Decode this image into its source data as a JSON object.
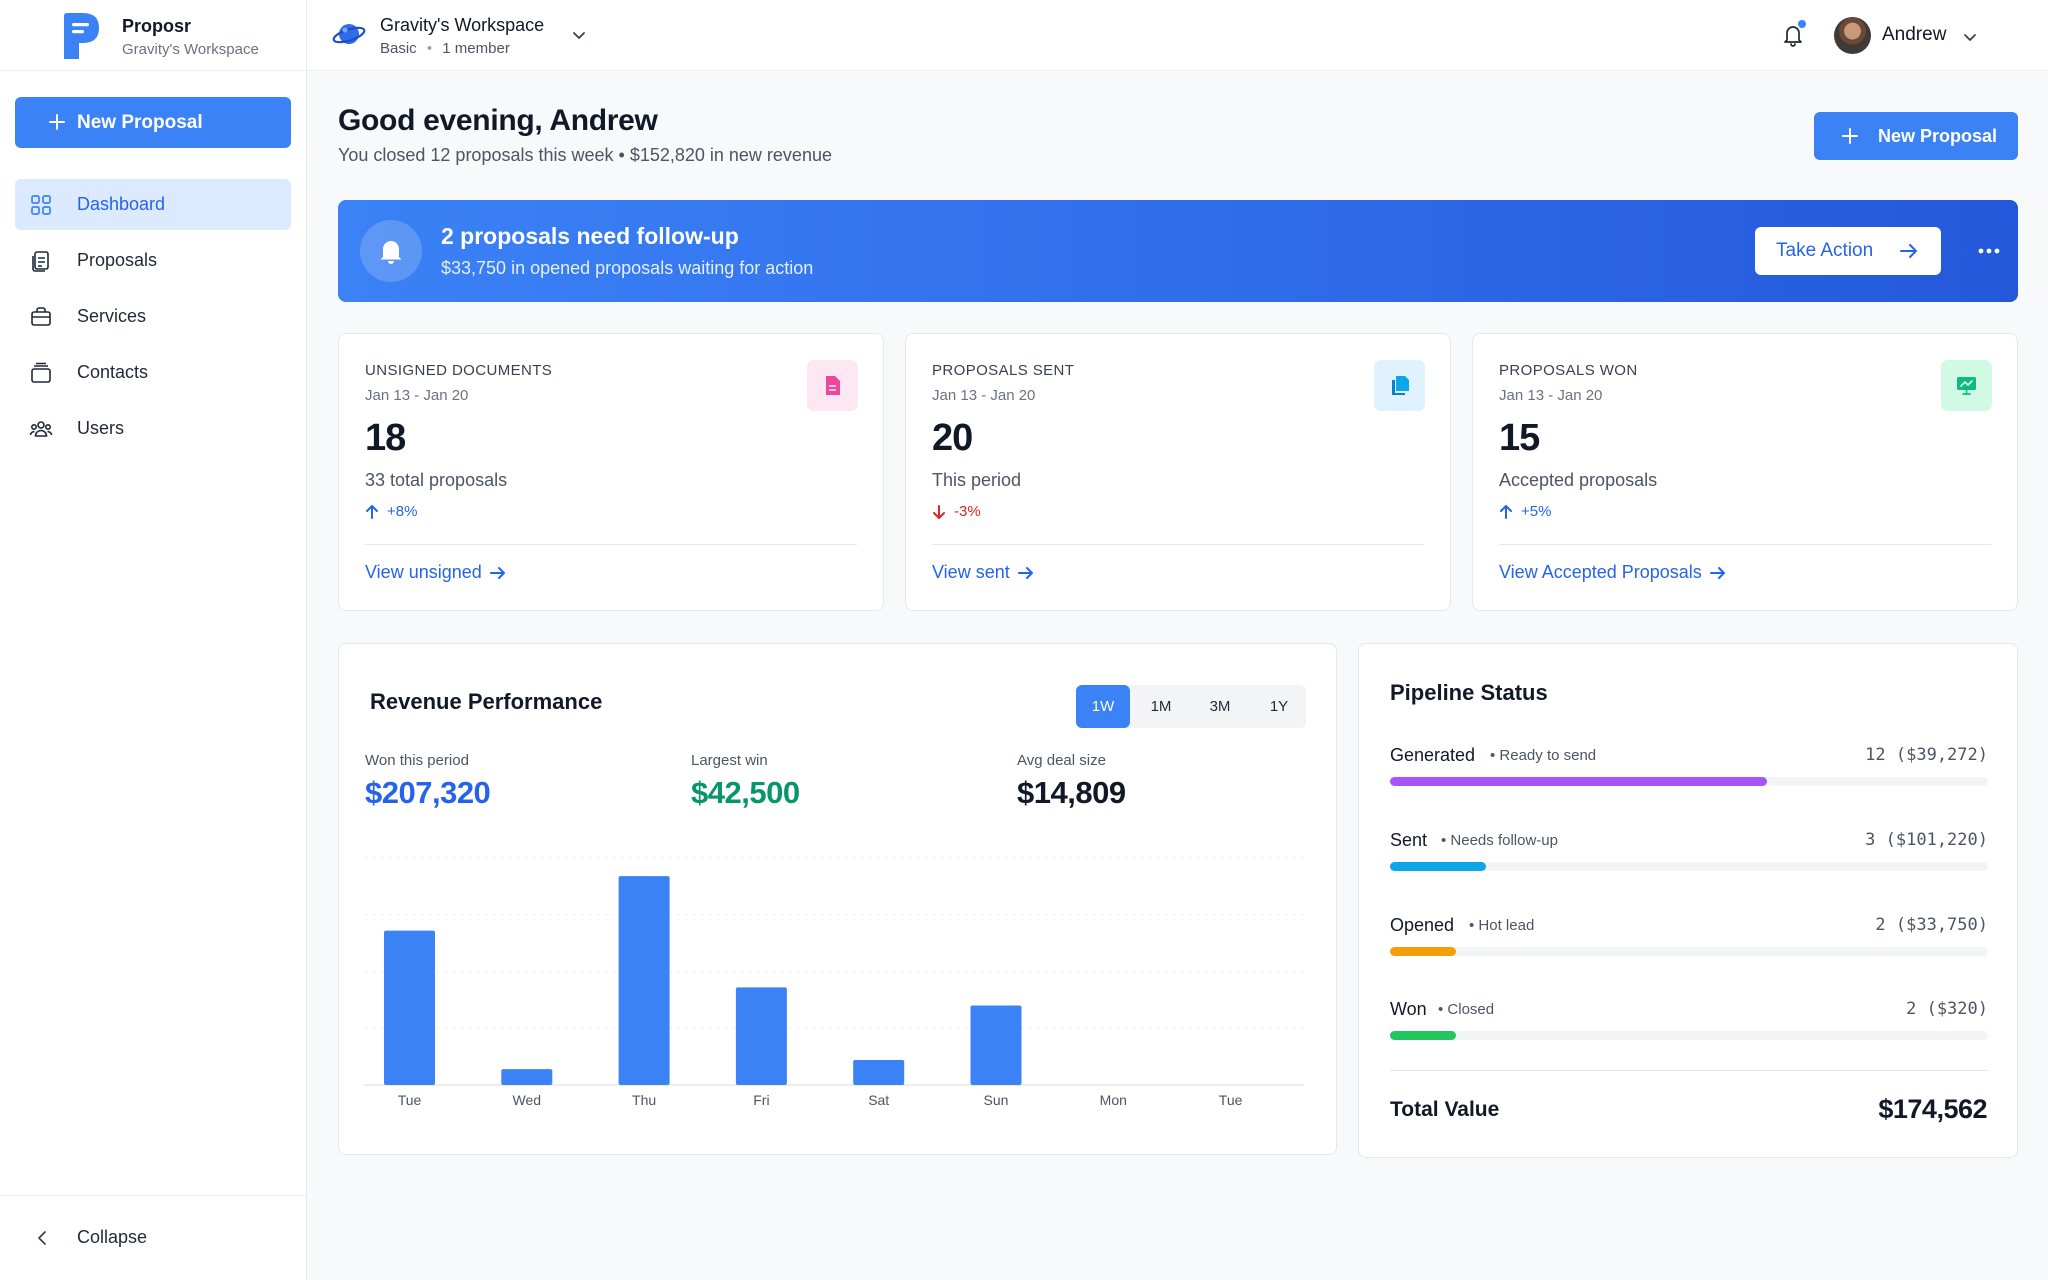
{
  "app": {
    "name": "Proposr",
    "workspace_label": "Gravity's Workspace"
  },
  "sidebar": {
    "new_proposal": "New Proposal",
    "items": [
      {
        "label": "Dashboard",
        "icon": "dashboard-grid-icon",
        "active": true
      },
      {
        "label": "Proposals",
        "icon": "clipboard-icon",
        "active": false
      },
      {
        "label": "Services",
        "icon": "briefcase-icon",
        "active": false
      },
      {
        "label": "Contacts",
        "icon": "contacts-icon",
        "active": false
      },
      {
        "label": "Users",
        "icon": "users-icon",
        "active": false
      }
    ],
    "collapse": "Collapse"
  },
  "header": {
    "workspace_name": "Gravity's Workspace",
    "workspace_plan": "Basic",
    "workspace_members": "1 member",
    "user_name": "Andrew",
    "accent": "#3b82f6"
  },
  "main": {
    "greeting": "Good evening, Andrew",
    "summary": "You closed 12 proposals this week • $152,820 in new revenue",
    "new_proposal": "New Proposal"
  },
  "banner": {
    "title": "2 proposals need follow-up",
    "subtitle": "$33,750 in opened proposals waiting for action",
    "action": "Take Action"
  },
  "stats": [
    {
      "label": "Unsigned Documents",
      "range": "Jan 13 - Jan 20",
      "value": "18",
      "desc": "33 total proposals",
      "change": "+8%",
      "direction": "up",
      "link": "View unsigned",
      "icon": "document-icon",
      "badge_bg": "#fce7f3",
      "badge_fg": "#ec4899"
    },
    {
      "label": "Proposals Sent",
      "range": "Jan 13 - Jan 20",
      "value": "20",
      "desc": "This period",
      "change": "-3%",
      "direction": "down",
      "link": "View sent",
      "icon": "copy-documents-icon",
      "badge_bg": "#e0f2fe",
      "badge_fg": "#0ea5e9"
    },
    {
      "label": "Proposals Won",
      "range": "Jan 13 - Jan 20",
      "value": "15",
      "desc": "Accepted proposals",
      "change": "+5%",
      "direction": "up",
      "link": "View Accepted Proposals",
      "icon": "presentation-chart-icon",
      "badge_bg": "#d1fae5",
      "badge_fg": "#10b981"
    }
  ],
  "revenue": {
    "title": "Revenue Performance",
    "periods": [
      "1W",
      "1M",
      "3M",
      "1Y"
    ],
    "active_period": "1W",
    "metrics": [
      {
        "label": "Won this period",
        "value": "$207,320",
        "color": "#2563eb"
      },
      {
        "label": "Largest win",
        "value": "$42,500",
        "color": "#059669"
      },
      {
        "label": "Avg deal size",
        "value": "$14,809",
        "color": "#111827"
      }
    ]
  },
  "chart_data": {
    "type": "bar",
    "categories": [
      "Tue",
      "Wed",
      "Thu",
      "Fri",
      "Sat",
      "Sun",
      "Mon",
      "Tue"
    ],
    "values": [
      68,
      7,
      92,
      43,
      11,
      35,
      0,
      0
    ],
    "ylim": [
      0,
      100
    ],
    "grid": true,
    "bar_color": "#3b82f6",
    "title": "",
    "xlabel": "",
    "ylabel": ""
  },
  "pipeline": {
    "title": "Pipeline Status",
    "rows": [
      {
        "name": "Generated",
        "note": "• Ready to send",
        "count": "12 ($39,272)",
        "fraction": 0.63,
        "color": "#a855f7"
      },
      {
        "name": "Sent",
        "note": "• Needs follow-up",
        "count": "3 ($101,220)",
        "fraction": 0.16,
        "color": "#0ea5e9"
      },
      {
        "name": "Opened",
        "note": "• Hot lead",
        "count": "2 ($33,750)",
        "fraction": 0.11,
        "color": "#f59e0b"
      },
      {
        "name": "Won",
        "note": "• Closed",
        "count": "2 ($320)",
        "fraction": 0.11,
        "color": "#22c55e"
      }
    ],
    "total_label": "Total Value",
    "total_value": "$174,562"
  }
}
